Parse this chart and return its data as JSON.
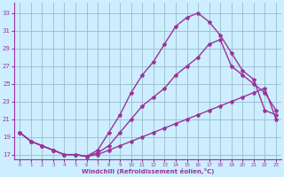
{
  "xlabel": "Windchill (Refroidissement éolien,°C)",
  "bg_color": "#cceeff",
  "line_color": "#993399",
  "grid_color": "#99bbcc",
  "ylim": [
    16.5,
    34.2
  ],
  "xlim": [
    -0.5,
    23.5
  ],
  "yticks": [
    17,
    19,
    21,
    23,
    25,
    27,
    29,
    31,
    33
  ],
  "xticks": [
    0,
    1,
    2,
    3,
    4,
    5,
    6,
    7,
    8,
    9,
    10,
    11,
    12,
    13,
    14,
    15,
    16,
    17,
    18,
    19,
    20,
    21,
    22,
    23
  ],
  "line1_x": [
    0,
    1,
    2,
    3,
    4,
    5,
    6,
    7,
    8,
    9,
    10,
    11,
    12,
    13,
    14,
    15,
    16,
    17,
    18,
    19,
    20,
    21,
    22,
    23
  ],
  "line1_y": [
    19.5,
    18.5,
    18.0,
    17.5,
    17.0,
    17.0,
    16.8,
    17.5,
    19.5,
    21.5,
    24.0,
    26.0,
    27.5,
    29.5,
    31.5,
    32.5,
    33.0,
    32.0,
    30.5,
    28.5,
    26.5,
    25.5,
    22.0,
    21.5
  ],
  "line2_x": [
    0,
    1,
    2,
    3,
    4,
    5,
    6,
    7,
    8,
    9,
    10,
    11,
    12,
    13,
    14,
    15,
    16,
    17,
    18,
    19,
    20,
    21,
    22,
    23
  ],
  "line2_y": [
    19.5,
    18.5,
    18.0,
    17.5,
    17.0,
    17.0,
    16.8,
    17.2,
    18.0,
    19.5,
    21.0,
    22.5,
    23.5,
    24.5,
    26.0,
    27.0,
    28.0,
    29.5,
    30.0,
    27.0,
    26.0,
    25.0,
    24.0,
    22.0
  ],
  "line3_x": [
    0,
    1,
    2,
    3,
    4,
    5,
    6,
    7,
    8,
    9,
    10,
    11,
    12,
    13,
    14,
    15,
    16,
    17,
    18,
    19,
    20,
    21,
    22,
    23
  ],
  "line3_y": [
    19.5,
    18.5,
    18.0,
    17.5,
    17.0,
    17.0,
    16.8,
    17.0,
    17.5,
    18.0,
    18.5,
    19.0,
    19.5,
    20.0,
    20.5,
    21.0,
    21.5,
    22.0,
    22.5,
    23.0,
    23.5,
    24.0,
    24.5,
    21.0
  ],
  "marker": "*",
  "markersize": 3,
  "linewidth": 1.0
}
